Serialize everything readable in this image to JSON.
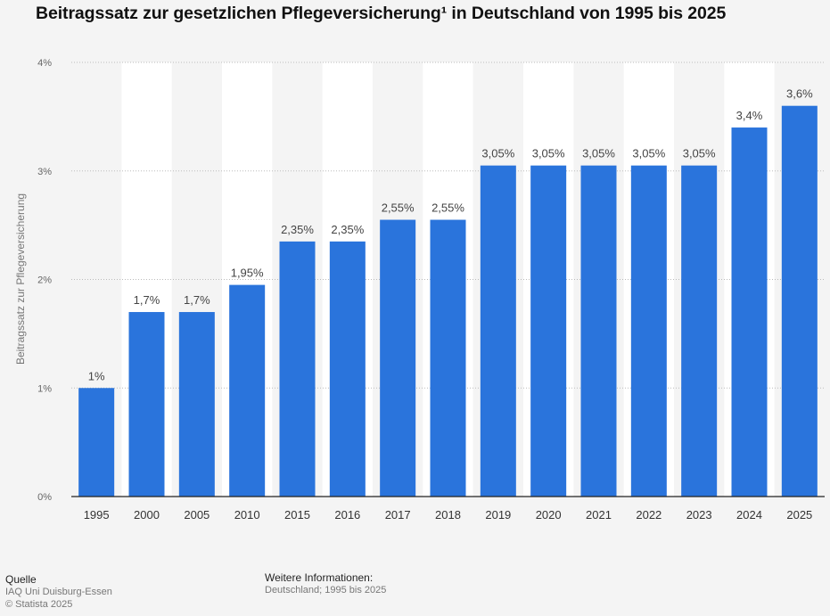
{
  "title": "Beitragssatz zur gesetzlichen Pflegeversicherung¹ in Deutschland von 1995 bis 2025",
  "footer": {
    "source_heading": "Quelle",
    "source_name": "IAQ Uni Duisburg-Essen",
    "copyright": "© Statista 2025",
    "info_heading": "Weitere Informationen:",
    "info_text": "Deutschland; 1995 bis 2025"
  },
  "colors": {
    "bar": "#2a74dc",
    "band": "#ffffff",
    "background": "#f4f4f4"
  },
  "chart_data": {
    "type": "bar",
    "title": "Beitragssatz zur gesetzlichen Pflegeversicherung¹ in Deutschland von 1995 bis 2025",
    "xlabel": "",
    "ylabel": "Beitragssatz zur Pflegeversicherung",
    "ylim": [
      0,
      4
    ],
    "yticks": [
      0,
      1,
      2,
      3,
      4
    ],
    "ytick_labels": [
      "0%",
      "1%",
      "2%",
      "3%",
      "4%"
    ],
    "categories": [
      "1995",
      "2000",
      "2005",
      "2010",
      "2015",
      "2016",
      "2017",
      "2018",
      "2019",
      "2020",
      "2021",
      "2022",
      "2023",
      "2024",
      "2025"
    ],
    "values": [
      1,
      1.7,
      1.7,
      1.95,
      2.35,
      2.35,
      2.55,
      2.55,
      3.05,
      3.05,
      3.05,
      3.05,
      3.05,
      3.4,
      3.6
    ],
    "value_labels": [
      "1%",
      "1,7%",
      "1,7%",
      "1,95%",
      "2,35%",
      "2,35%",
      "2,55%",
      "2,55%",
      "3,05%",
      "3,05%",
      "3,05%",
      "3,05%",
      "3,05%",
      "3,4%",
      "3,6%"
    ],
    "grid": true,
    "legend": "none"
  }
}
